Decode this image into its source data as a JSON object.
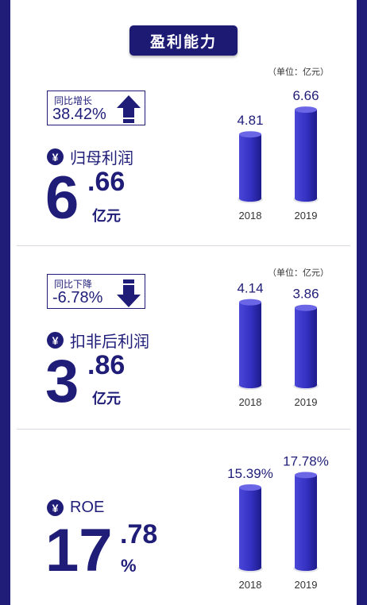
{
  "header": {
    "title": "盈利能力"
  },
  "colors": {
    "navy": "#1f1d78",
    "bar_light": "#4a46d8",
    "bar_dark": "#1d1b8a"
  },
  "sections": [
    {
      "unit": "（单位：亿元）",
      "change_label": "同比增长",
      "change_value": "38.42%",
      "change_direction": "up",
      "currency_symbol": "¥",
      "metric_name": "归母利润",
      "value_int": "6",
      "value_dec": ".66",
      "value_unit": "亿元"
    },
    {
      "unit": "（单位：亿元）",
      "change_label": "同比下降",
      "change_value": "-6.78%",
      "change_direction": "down",
      "currency_symbol": "¥",
      "metric_name": "扣非后利润",
      "value_int": "3",
      "value_dec": ".86",
      "value_unit": "亿元"
    },
    {
      "currency_symbol": "¥",
      "metric_name": "ROE",
      "value_int": "17",
      "value_dec": ".78",
      "value_unit": "%"
    }
  ],
  "chart_data": [
    {
      "type": "bar",
      "categories": [
        "2018",
        "2019"
      ],
      "values": [
        4.81,
        6.66
      ],
      "value_labels": [
        "4.81",
        "6.66"
      ],
      "ylim": [
        0,
        7.5
      ]
    },
    {
      "type": "bar",
      "categories": [
        "2018",
        "2019"
      ],
      "values": [
        4.14,
        3.86
      ],
      "value_labels": [
        "4.14",
        "3.86"
      ],
      "ylim": [
        0,
        4.8
      ]
    },
    {
      "type": "bar",
      "categories": [
        "2018",
        "2019"
      ],
      "values": [
        15.39,
        17.78
      ],
      "value_labels": [
        "15.39%",
        "17.78%"
      ],
      "ylim": [
        0,
        19.2
      ]
    }
  ]
}
